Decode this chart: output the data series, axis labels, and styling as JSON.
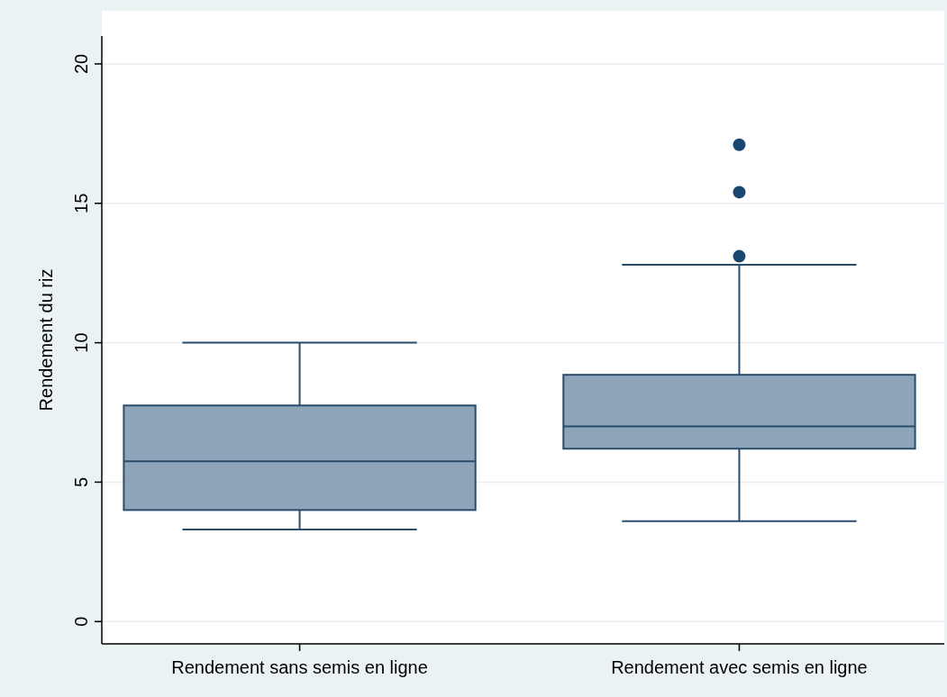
{
  "chart_data": {
    "type": "box",
    "ylabel": "Rendement du riz",
    "categories": [
      "Rendement sans semis en ligne",
      "Rendement avec semis en ligne"
    ],
    "boxes": [
      {
        "low": 3.3,
        "q1": 4.0,
        "median": 5.75,
        "q3": 7.75,
        "high": 10.0
      },
      {
        "low": 3.6,
        "q1": 6.2,
        "median": 7.0,
        "q3": 8.85,
        "high": 12.8,
        "outliers": [
          13.1,
          15.4,
          17.1
        ]
      }
    ],
    "color": "#8ea4b8",
    "ylim": [
      -0.8,
      21.0
    ],
    "yticks": [
      0,
      5,
      10,
      15,
      20
    ],
    "grid": "y"
  }
}
